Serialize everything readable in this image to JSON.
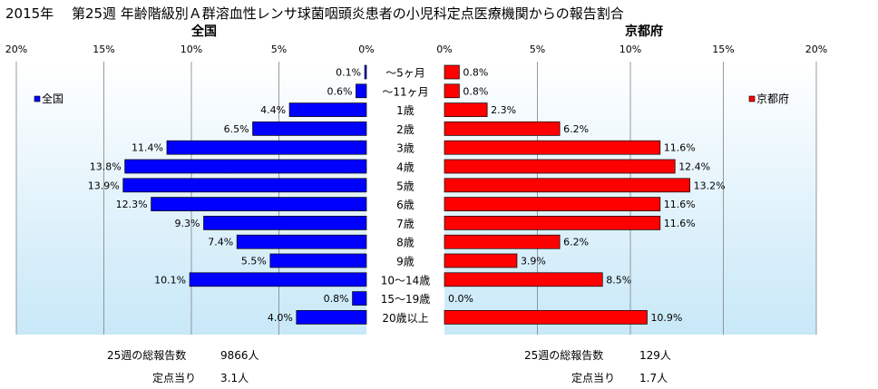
{
  "title": "2015年　 第25週 年齢階級別Ａ群溶血性レンサ球菌咽頭炎患者の小児科定点医療機関からの報告割合",
  "chart_data": {
    "type": "bar",
    "orientation": "horizontal-butterfly",
    "categories": [
      "～5ヶ月",
      "～11ヶ月",
      "1歳",
      "2歳",
      "3歳",
      "4歳",
      "5歳",
      "6歳",
      "7歳",
      "8歳",
      "9歳",
      "10～14歳",
      "15～19歳",
      "20歳以上"
    ],
    "x_ticks": [
      "20%",
      "15%",
      "10%",
      "5%",
      "0%"
    ],
    "x_ticks_right": [
      "0%",
      "5%",
      "10%",
      "15%",
      "20%"
    ],
    "xlim": [
      0,
      20
    ],
    "grid": true,
    "series": [
      {
        "name": "全国",
        "panel_title": "全国",
        "legend": "全国",
        "color": "#0000ff",
        "values": [
          0.1,
          0.6,
          4.4,
          6.5,
          11.4,
          13.8,
          13.9,
          12.3,
          9.3,
          7.4,
          5.5,
          10.1,
          0.8,
          4.0
        ],
        "labels": [
          "0.1%",
          "0.6%",
          "4.4%",
          "6.5%",
          "11.4%",
          "13.8%",
          "13.9%",
          "12.3%",
          "9.3%",
          "7.4%",
          "5.5%",
          "10.1%",
          "0.8%",
          "4.0%"
        ]
      },
      {
        "name": "京都府",
        "panel_title": "京都府",
        "legend": "京都府",
        "color": "#ff0000",
        "values": [
          0.8,
          0.8,
          2.3,
          6.2,
          11.6,
          12.4,
          13.2,
          11.6,
          11.6,
          6.2,
          3.9,
          8.5,
          0.0,
          10.9
        ],
        "labels": [
          "0.8%",
          "0.8%",
          "2.3%",
          "6.2%",
          "11.6%",
          "12.4%",
          "13.2%",
          "11.6%",
          "11.6%",
          "6.2%",
          "3.9%",
          "8.5%",
          "0.0%",
          "10.9%"
        ]
      }
    ]
  },
  "stats": {
    "national": {
      "total_label": "25週の総報告数",
      "total_value": "9866人",
      "per_site_label": "定点当り",
      "per_site_value": "3.1人"
    },
    "kyoto": {
      "total_label": "25週の総報告数",
      "total_value": "129人",
      "per_site_label": "定点当り",
      "per_site_value": "1.7人"
    }
  },
  "colors": {
    "plot_bg_top": "#ffffff",
    "plot_bg_bottom": "#c8e8f8",
    "gridline": "#808080",
    "national_bar": "#0000ff",
    "kyoto_bar": "#ff0000"
  }
}
